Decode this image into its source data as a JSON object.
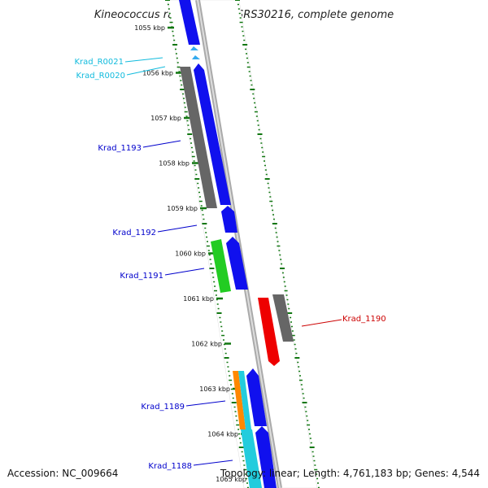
{
  "title": "Kineococcus radiotolerans SRS30216, complete genome",
  "accession": "Accession: NC_009664",
  "summary": "Topology: linear; Length: 4,761,183 bp; Genes: 4,544",
  "colors": {
    "forward_gene": "#1010ee",
    "reverse_gene": "#666666",
    "pseudo_gene": "#22cc22",
    "rna_gene": "#22ccdd",
    "highlight_gene": "#ee0000",
    "other_gene": "#ff8800",
    "tick": "#117711",
    "label_blue": "#0000cc",
    "label_cyan": "#11bbdd",
    "label_red": "#cc0000"
  },
  "ruler_labels": [
    "1055 kbp",
    "1056 kbp",
    "1057 kbp",
    "1058 kbp",
    "1059 kbp",
    "1060 kbp",
    "1061 kbp",
    "1062 kbp",
    "1063 kbp",
    "1064 kbp",
    "1065 kbp"
  ],
  "gene_labels": [
    {
      "text": "Krad_R0021",
      "color": "label_cyan"
    },
    {
      "text": "Krad_R0020",
      "color": "label_cyan"
    },
    {
      "text": "Krad_1193",
      "color": "label_blue"
    },
    {
      "text": "Krad_1192",
      "color": "label_blue"
    },
    {
      "text": "Krad_1191",
      "color": "label_blue"
    },
    {
      "text": "Krad_1190",
      "color": "label_red"
    },
    {
      "text": "Krad_1189",
      "color": "label_blue"
    },
    {
      "text": "Krad_1188",
      "color": "label_blue"
    }
  ]
}
